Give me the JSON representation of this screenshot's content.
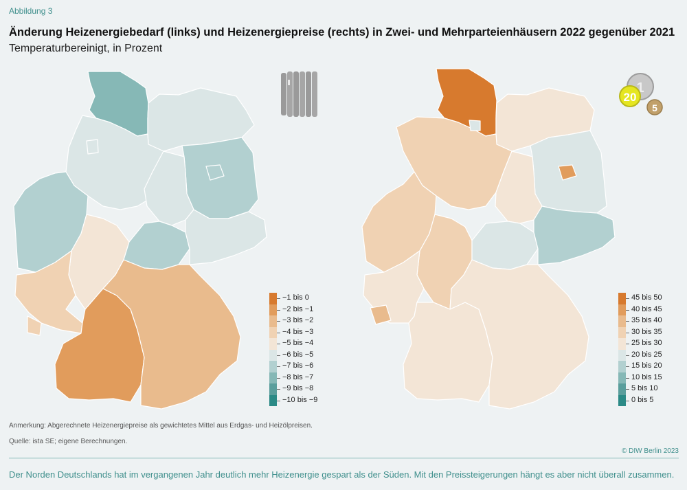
{
  "figure_label": "Abbildung 3",
  "title": "Änderung Heizenergiebedarf (links) und Heizenergiepreise (rechts) in Zwei- und Mehrparteienhäusern 2022 gegenüber 2021",
  "subtitle": "Temperaturbereinigt, in Prozent",
  "colors": {
    "background": "#eef2f3",
    "accent": "#3f8f8c",
    "scale": [
      "#2b8a86",
      "#5a9e9c",
      "#86b8b6",
      "#b2d0d0",
      "#dbe6e6",
      "#f3e5d6",
      "#f0d2b3",
      "#e9bb8d",
      "#e19c5c",
      "#d77a2e"
    ]
  },
  "legend_left": {
    "items": [
      {
        "label": "−1 bis 0",
        "color": "#d77a2e"
      },
      {
        "label": "−2 bis −1",
        "color": "#e19c5c"
      },
      {
        "label": "−3 bis −2",
        "color": "#e9bb8d"
      },
      {
        "label": "−4 bis −3",
        "color": "#f0d2b3"
      },
      {
        "label": "−5 bis −4",
        "color": "#f3e5d6"
      },
      {
        "label": "−6 bis −5",
        "color": "#dbe6e6"
      },
      {
        "label": "−7 bis −6",
        "color": "#b2d0d0"
      },
      {
        "label": "−8 bis −7",
        "color": "#86b8b6"
      },
      {
        "label": "−9 bis −8",
        "color": "#5a9e9c"
      },
      {
        "label": "−10 bis −9",
        "color": "#2b8a86"
      }
    ]
  },
  "legend_right": {
    "items": [
      {
        "label": "45 bis 50",
        "color": "#d77a2e"
      },
      {
        "label": "40 bis 45",
        "color": "#e19c5c"
      },
      {
        "label": "35 bis 40",
        "color": "#e9bb8d"
      },
      {
        "label": "30 bis 35",
        "color": "#f0d2b3"
      },
      {
        "label": "25 bis 30",
        "color": "#f3e5d6"
      },
      {
        "label": "20 bis 25",
        "color": "#dbe6e6"
      },
      {
        "label": "15 bis 20",
        "color": "#b2d0d0"
      },
      {
        "label": "10 bis 15",
        "color": "#86b8b6"
      },
      {
        "label": "5 bis 10",
        "color": "#5a9e9c"
      },
      {
        "label": "0 bis 5",
        "color": "#2b8a86"
      }
    ]
  },
  "coins": {
    "values": [
      "20",
      "1",
      "5"
    ]
  },
  "icons": {
    "left": "radiator-icon",
    "right": "coins-icon"
  },
  "note": "Anmerkung: Abgerechnete Heizenergiepreise als gewichtetes Mittel aus Erdgas- und Heizölpreisen.",
  "source": "Quelle: ista SE; eigene Berechnungen.",
  "copyright": "© DIW Berlin 2023",
  "footer": "Der Norden Deutschlands hat im vergangenen Jahr deutlich mehr Heizenergie gespart als der Süden. Mit den Preissteigerungen hängt es aber nicht überall zusammen."
}
